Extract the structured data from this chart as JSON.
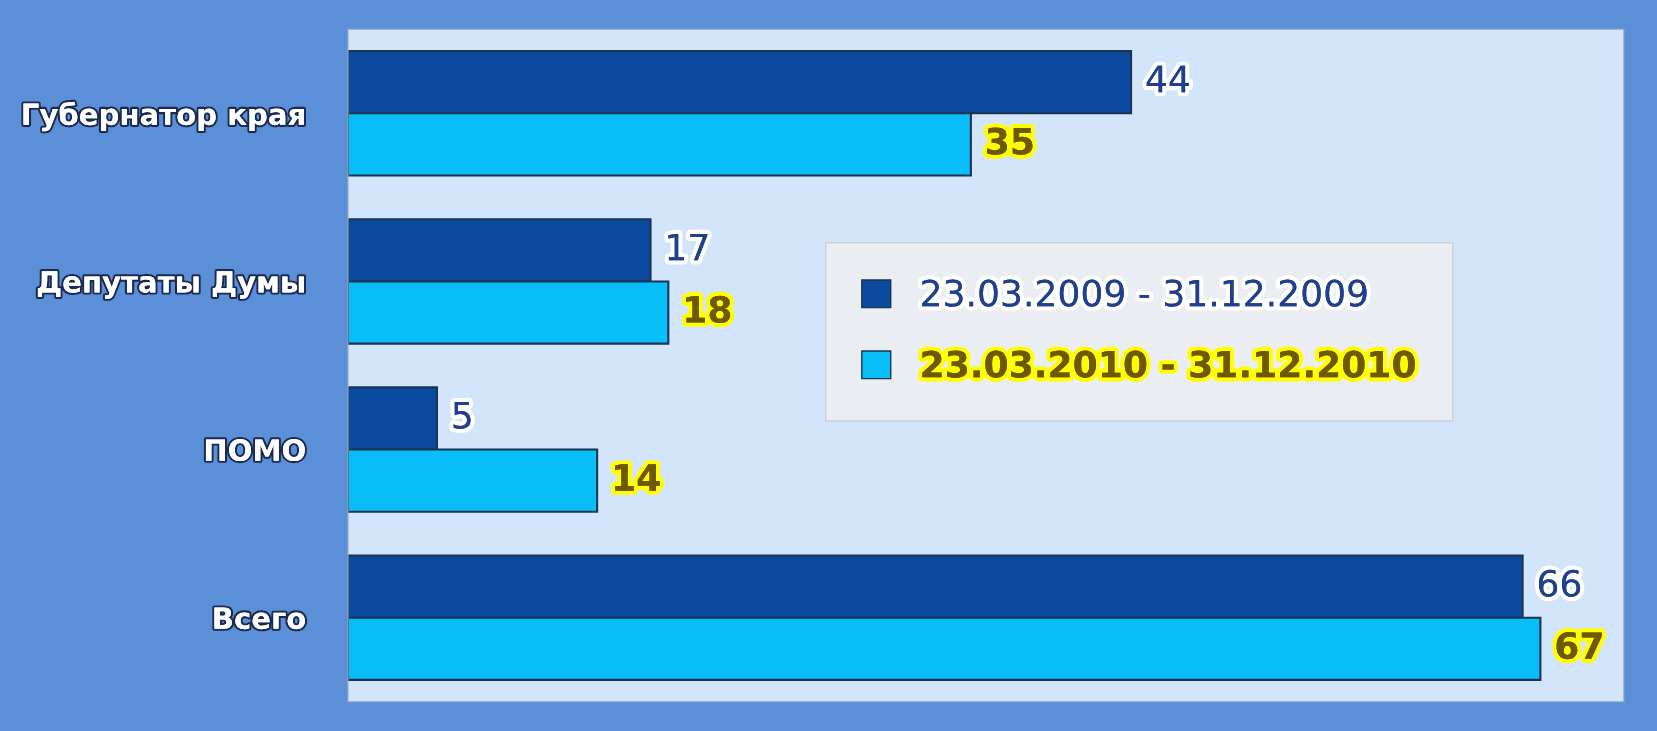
{
  "chart_data": {
    "type": "bar",
    "orientation": "horizontal",
    "categories": [
      "Губернатор края",
      "Депутаты Думы",
      "ПОМО",
      "Всего"
    ],
    "series": [
      {
        "name": "23.03.2009 - 31.12.2009",
        "color": "#0b4a9e",
        "values": [
          44,
          17,
          5,
          66
        ]
      },
      {
        "name": "23.03.2010 - 31.12.2010",
        "color": "#08bdf8",
        "values": [
          35,
          18,
          14,
          67
        ]
      }
    ],
    "data_labels": true,
    "legend": "right",
    "grid": false
  }
}
